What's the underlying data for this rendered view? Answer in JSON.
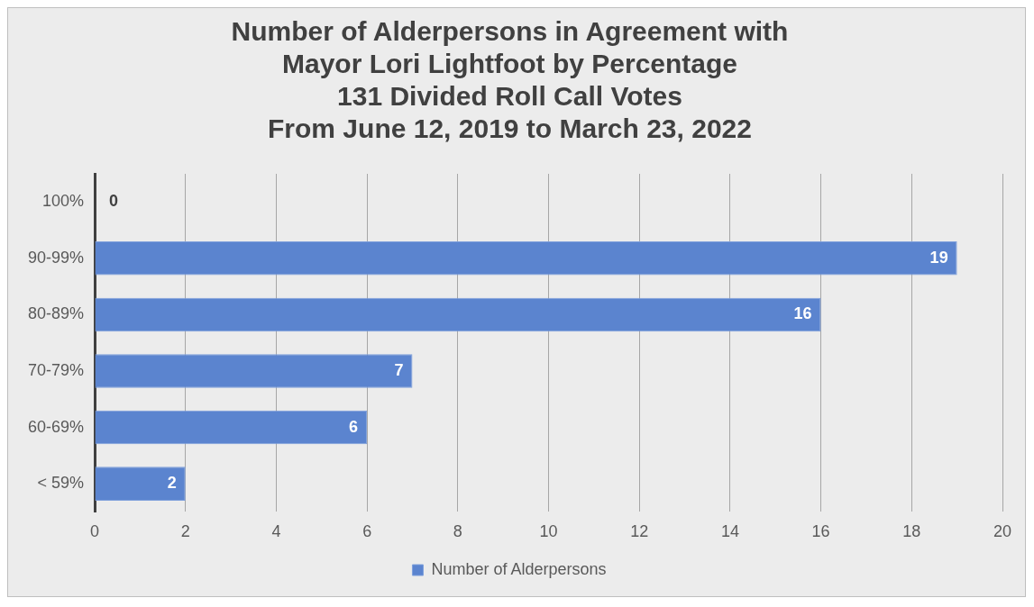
{
  "chart_data": {
    "type": "bar",
    "orientation": "horizontal",
    "title": [
      "Number of Alderpersons in Agreement with",
      "Mayor Lori Lightfoot by Percentage",
      "131 Divided Roll Call Votes",
      "From June 12, 2019 to March 23, 2022"
    ],
    "categories": [
      "100%",
      "90-99%",
      "80-89%",
      "70-79%",
      "60-69%",
      "< 59%"
    ],
    "series": [
      {
        "name": "Number of Alderpersons",
        "color": "#5b84cf",
        "values": [
          0,
          19,
          16,
          7,
          6,
          2
        ]
      }
    ],
    "xlim": [
      0,
      20
    ],
    "xticks": [
      0,
      2,
      4,
      6,
      8,
      10,
      12,
      14,
      16,
      18,
      20
    ],
    "grid": "x",
    "legend": "bottom",
    "data_labels": true
  }
}
